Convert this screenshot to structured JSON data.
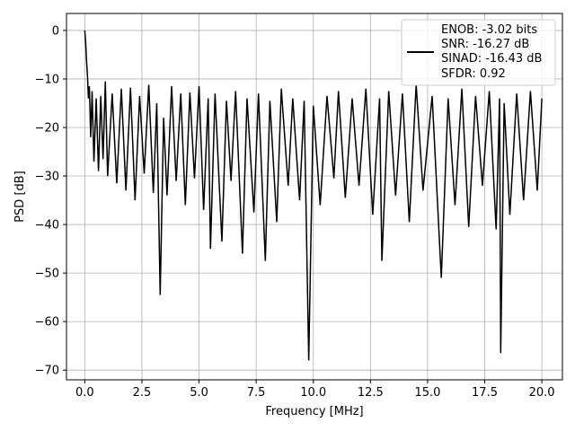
{
  "chart_data": {
    "type": "line",
    "xlabel": "Frequency [MHz]",
    "ylabel": "PSD [dB]",
    "xlim": [
      -0.8,
      20.9
    ],
    "ylim": [
      -72,
      3.5
    ],
    "xticks": [
      0.0,
      2.5,
      5.0,
      7.5,
      10.0,
      12.5,
      15.0,
      17.5,
      20.0
    ],
    "xtick_labels": [
      "0.0",
      "2.5",
      "5.0",
      "7.5",
      "10.0",
      "12.5",
      "15.0",
      "17.5",
      "20.0"
    ],
    "yticks": [
      0,
      -10,
      -20,
      -30,
      -40,
      -50,
      -60,
      -70
    ],
    "ytick_labels": [
      "0",
      "−10",
      "−20",
      "−30",
      "−40",
      "−50",
      "−60",
      "−70"
    ],
    "grid": true,
    "legend_position": "top-right",
    "legend_entries": [
      "ENOB: -3.02 bits",
      "SNR: -16.27 dB",
      "SINAD: -16.43 dB",
      "SFDR: 0.92"
    ],
    "line_color": "#000000",
    "series": [
      {
        "points": [
          [
            0.0,
            0.0
          ],
          [
            0.04,
            -2.5
          ],
          [
            0.08,
            -6.5
          ],
          [
            0.12,
            -9.5
          ],
          [
            0.16,
            -14.0
          ],
          [
            0.2,
            -11.5
          ],
          [
            0.26,
            -22.0
          ],
          [
            0.32,
            -12.5
          ],
          [
            0.4,
            -27.0
          ],
          [
            0.5,
            -14.0
          ],
          [
            0.6,
            -29.0
          ],
          [
            0.7,
            -13.5
          ],
          [
            0.8,
            -26.5
          ],
          [
            0.9,
            -10.5
          ],
          [
            1.0,
            -30.0
          ],
          [
            1.2,
            -13.0
          ],
          [
            1.4,
            -31.5
          ],
          [
            1.6,
            -12.0
          ],
          [
            1.8,
            -33.0
          ],
          [
            2.0,
            -11.8
          ],
          [
            2.2,
            -35.0
          ],
          [
            2.4,
            -13.5
          ],
          [
            2.6,
            -29.5
          ],
          [
            2.8,
            -11.2
          ],
          [
            3.0,
            -33.5
          ],
          [
            3.15,
            -15.0
          ],
          [
            3.3,
            -54.5
          ],
          [
            3.45,
            -18.0
          ],
          [
            3.6,
            -34.0
          ],
          [
            3.8,
            -11.5
          ],
          [
            4.0,
            -31.0
          ],
          [
            4.2,
            -13.0
          ],
          [
            4.4,
            -36.0
          ],
          [
            4.6,
            -12.8
          ],
          [
            4.8,
            -30.5
          ],
          [
            5.0,
            -11.5
          ],
          [
            5.2,
            -37.0
          ],
          [
            5.4,
            -14.0
          ],
          [
            5.5,
            -45.0
          ],
          [
            5.7,
            -13.0
          ],
          [
            6.0,
            -43.5
          ],
          [
            6.2,
            -14.5
          ],
          [
            6.4,
            -31.0
          ],
          [
            6.6,
            -12.5
          ],
          [
            6.9,
            -46.0
          ],
          [
            7.1,
            -14.0
          ],
          [
            7.4,
            -37.5
          ],
          [
            7.6,
            -13.0
          ],
          [
            7.9,
            -47.5
          ],
          [
            8.1,
            -14.5
          ],
          [
            8.4,
            -39.5
          ],
          [
            8.6,
            -12.0
          ],
          [
            8.9,
            -32.0
          ],
          [
            9.1,
            -14.0
          ],
          [
            9.4,
            -35.0
          ],
          [
            9.6,
            -14.5
          ],
          [
            9.8,
            -68.0
          ],
          [
            10.0,
            -15.5
          ],
          [
            10.3,
            -36.0
          ],
          [
            10.6,
            -13.5
          ],
          [
            10.9,
            -30.5
          ],
          [
            11.1,
            -12.5
          ],
          [
            11.4,
            -34.5
          ],
          [
            11.7,
            -14.0
          ],
          [
            12.0,
            -32.0
          ],
          [
            12.3,
            -12.0
          ],
          [
            12.6,
            -38.0
          ],
          [
            12.9,
            -14.0
          ],
          [
            13.0,
            -47.5
          ],
          [
            13.3,
            -12.5
          ],
          [
            13.6,
            -34.0
          ],
          [
            13.9,
            -13.0
          ],
          [
            14.2,
            -39.5
          ],
          [
            14.5,
            -11.2
          ],
          [
            14.8,
            -33.0
          ],
          [
            15.2,
            -13.5
          ],
          [
            15.6,
            -51.0
          ],
          [
            15.9,
            -14.0
          ],
          [
            16.2,
            -36.0
          ],
          [
            16.5,
            -12.0
          ],
          [
            16.8,
            -40.5
          ],
          [
            17.1,
            -13.5
          ],
          [
            17.4,
            -32.0
          ],
          [
            17.7,
            -12.5
          ],
          [
            18.0,
            -41.0
          ],
          [
            18.15,
            -14.0
          ],
          [
            18.2,
            -66.5
          ],
          [
            18.35,
            -15.0
          ],
          [
            18.6,
            -38.0
          ],
          [
            18.9,
            -13.0
          ],
          [
            19.2,
            -35.0
          ],
          [
            19.5,
            -12.5
          ],
          [
            19.8,
            -33.0
          ],
          [
            20.0,
            -14.0
          ]
        ]
      }
    ]
  }
}
